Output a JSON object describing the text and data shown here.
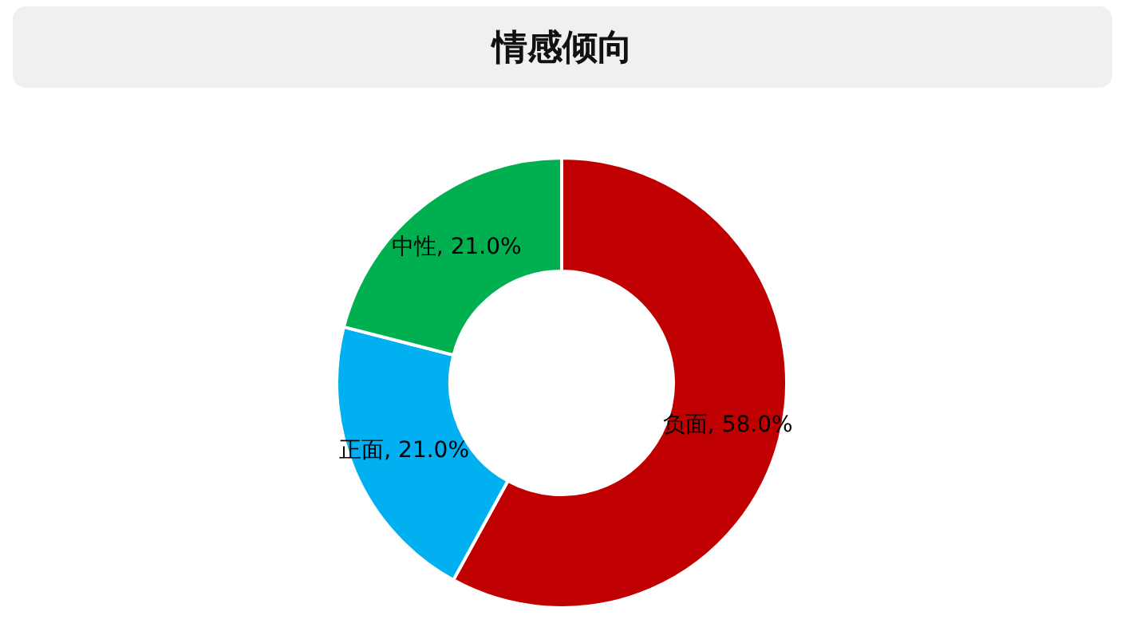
{
  "chart_data": {
    "type": "donut",
    "title": "情感倾向",
    "categories": [
      "负面",
      "正面",
      "中性"
    ],
    "values": [
      58,
      21,
      21
    ],
    "colors": [
      "#c00000",
      "#00b0f0",
      "#00b050"
    ],
    "value_labels": [
      ", 58.0%",
      ", 21.0%",
      ", 21.0%"
    ],
    "legend": false
  }
}
